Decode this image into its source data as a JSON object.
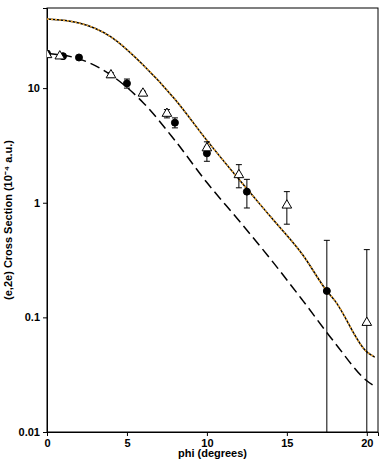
{
  "chart_data": {
    "type": "line",
    "x_label": "phi (degrees)",
    "y_label": "(e,2e) Cross Section (10⁻⁴ a.u.)",
    "log": "y",
    "xlim": [
      0,
      20.7
    ],
    "ylim": [
      0.01,
      50
    ],
    "xticks": [
      0,
      5,
      10,
      15,
      20
    ],
    "yticks": [
      0.01,
      0.1,
      1,
      10
    ],
    "series": [
      {
        "type": "line",
        "color": "#000000",
        "line_style": "solid",
        "x": [
          0,
          2,
          4,
          6,
          8,
          10,
          12,
          14,
          16,
          17.5,
          18,
          20,
          20.5
        ],
        "values": [
          40,
          37,
          28,
          16,
          8,
          3.5,
          1.6,
          0.75,
          0.35,
          0.17,
          0.14,
          0.05,
          0.045
        ]
      },
      {
        "type": "line",
        "color": "#f0a830",
        "line_style": "dotted",
        "x": [
          0,
          2,
          4,
          6,
          8,
          10,
          12,
          14,
          16,
          17.5,
          18,
          20,
          20.5
        ],
        "values": [
          40,
          37,
          28,
          16,
          8,
          3.5,
          1.6,
          0.75,
          0.35,
          0.17,
          0.14,
          0.05,
          0.045
        ]
      },
      {
        "type": "line",
        "color": "#000000",
        "line_style": "dashed",
        "x": [
          0,
          2,
          4,
          6,
          8,
          10,
          12,
          14,
          16,
          18,
          20,
          20.5
        ],
        "values": [
          20,
          18,
          13,
          7.5,
          3.5,
          1.5,
          0.7,
          0.32,
          0.14,
          0.06,
          0.028,
          0.025
        ]
      },
      {
        "type": "scatter",
        "color": "#000000",
        "marker": "circle",
        "x": [
          0,
          1,
          2,
          5,
          8,
          10,
          12.5,
          17.5
        ],
        "values": [
          20,
          19,
          18.5,
          11,
          5,
          2.7,
          1.25,
          0.17
        ],
        "errors": [
          1,
          0.6,
          0.6,
          1,
          0.5,
          0.4,
          0.35,
          0.3
        ]
      },
      {
        "type": "scatter",
        "color": "#000000",
        "marker": "open-triangle",
        "x": [
          0,
          0.8,
          4,
          6,
          7.5,
          10,
          12,
          15,
          20
        ],
        "values": [
          19.5,
          19,
          13,
          9,
          6,
          3,
          1.75,
          0.95,
          0.09
        ],
        "errors": [
          0.8,
          0.6,
          0.6,
          0.4,
          0.5,
          0.4,
          0.4,
          0.3,
          0.3
        ]
      }
    ]
  }
}
